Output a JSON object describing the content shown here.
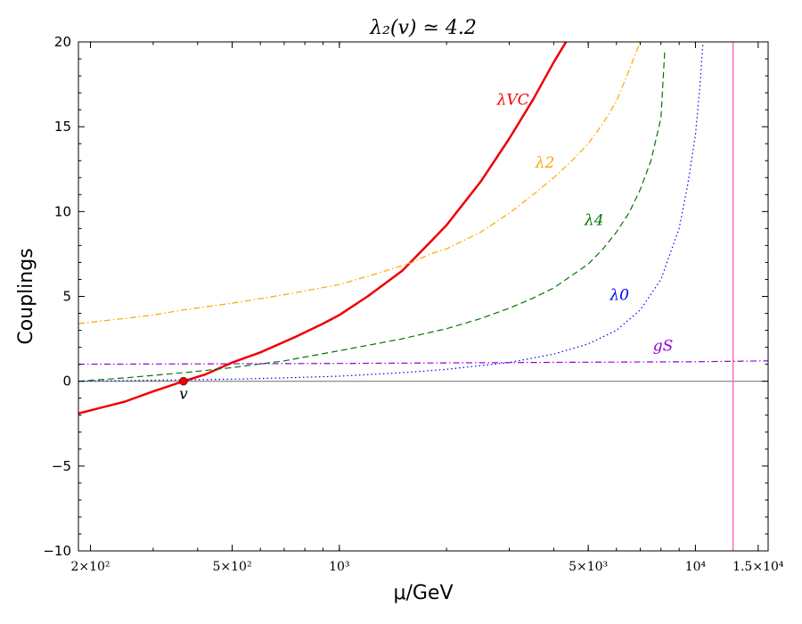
{
  "chart_data": {
    "type": "line",
    "title": "λ₂(v) ≃ 4.2",
    "xlabel": "μ/GeV",
    "ylabel": "Couplings",
    "x_scale": "log",
    "xlim": [
      185,
      16000
    ],
    "ylim": [
      -10,
      20
    ],
    "grid": false,
    "legend": "none",
    "x_ticks": [
      {
        "value": 200,
        "label": "2×10²"
      },
      {
        "value": 500,
        "label": "5×10²"
      },
      {
        "value": 1000,
        "label": "10³"
      },
      {
        "value": 5000,
        "label": "5×10³"
      },
      {
        "value": 10000,
        "label": "10⁴"
      },
      {
        "value": 15000,
        "label": "1.5×10⁴"
      }
    ],
    "y_ticks": [
      {
        "value": 20,
        "label": "20"
      },
      {
        "value": 15,
        "label": "15"
      },
      {
        "value": 10,
        "label": "10"
      },
      {
        "value": 5,
        "label": "5"
      },
      {
        "value": 0,
        "label": "0"
      },
      {
        "value": -5,
        "label": "−5"
      },
      {
        "value": -10,
        "label": "−10"
      }
    ],
    "series": [
      {
        "name": "λVC",
        "color": "#ee0000",
        "style": "solid",
        "width": 2.5,
        "label_at": [
          2770,
          16.3
        ],
        "label_color": "#ee0000",
        "x": [
          185,
          250,
          300,
          365,
          420,
          500,
          600,
          750,
          900,
          1000,
          1200,
          1500,
          1800,
          2000,
          2500,
          3000,
          3500,
          4000,
          4330
        ],
        "y": [
          -1.9,
          -1.2,
          -0.6,
          0.0,
          0.4,
          1.1,
          1.7,
          2.6,
          3.4,
          3.9,
          5.0,
          6.5,
          8.2,
          9.2,
          11.8,
          14.3,
          16.6,
          18.8,
          20
        ]
      },
      {
        "name": "λ2",
        "color": "#ffa500",
        "style": "dashdot",
        "width": 1.2,
        "label_at": [
          3550,
          12.6
        ],
        "label_color": "#ffa500",
        "x": [
          185,
          250,
          300,
          365,
          500,
          700,
          1000,
          1300,
          1600,
          1800,
          2000,
          2500,
          3000,
          3500,
          4000,
          4500,
          5000,
          5500,
          6000,
          6500,
          7000
        ],
        "y": [
          3.4,
          3.7,
          3.9,
          4.2,
          4.6,
          5.1,
          5.7,
          6.4,
          7.0,
          7.5,
          7.8,
          8.8,
          9.9,
          11.0,
          12.0,
          13.0,
          14.0,
          15.2,
          16.5,
          18.3,
          20
        ]
      },
      {
        "name": "λ4",
        "color": "#007700",
        "style": "dashed",
        "width": 1.2,
        "label_at": [
          4880,
          9.2
        ],
        "label_color": "#007700",
        "x": [
          185,
          250,
          365,
          500,
          700,
          1000,
          1500,
          2000,
          2500,
          3000,
          3500,
          4000,
          5000,
          5500,
          6000,
          6500,
          7000,
          7500,
          8000,
          8200
        ],
        "y": [
          0.0,
          0.2,
          0.5,
          0.8,
          1.2,
          1.8,
          2.5,
          3.1,
          3.7,
          4.3,
          4.9,
          5.5,
          6.9,
          7.8,
          8.8,
          9.9,
          11.3,
          13.0,
          15.5,
          19.5
        ]
      },
      {
        "name": "λ0",
        "color": "#0000ee",
        "style": "dotted",
        "width": 1.2,
        "label_at": [
          5750,
          4.8
        ],
        "label_color": "#0000ee",
        "x": [
          185,
          365,
          500,
          700,
          1000,
          1500,
          2000,
          3000,
          4000,
          5000,
          6000,
          7000,
          8000,
          9000,
          9500,
          10000,
          10300,
          10500
        ],
        "y": [
          0.0,
          0.08,
          0.12,
          0.2,
          0.3,
          0.5,
          0.7,
          1.1,
          1.6,
          2.2,
          3.0,
          4.2,
          6.0,
          9.0,
          11.5,
          14.5,
          17.5,
          20
        ]
      },
      {
        "name": "gS",
        "color": "#9400d3",
        "style": "dashdot",
        "width": 1.2,
        "label_at": [
          7600,
          1.8
        ],
        "label_color": "#9400d3",
        "x": [
          185,
          1000,
          5000,
          10000,
          16000
        ],
        "y": [
          1.0,
          1.05,
          1.12,
          1.15,
          1.2
        ]
      }
    ],
    "reference_lines": [
      {
        "type": "horizontal",
        "y": 0,
        "color": "#808080"
      },
      {
        "type": "vertical",
        "x": 12750,
        "color": "#ff69b4"
      }
    ],
    "points": [
      {
        "label": "v",
        "x": 365,
        "y": 0,
        "color": "#ee0000"
      }
    ]
  }
}
